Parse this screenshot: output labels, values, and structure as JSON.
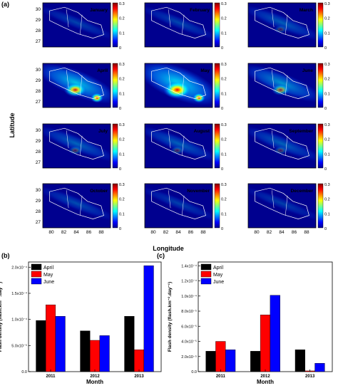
{
  "figure": {
    "map_panel_letter": "(a)",
    "map_xlabel": "Longitude",
    "map_ylabel": "Latitude",
    "map_xticks": [
      "80",
      "82",
      "84",
      "86",
      "88"
    ],
    "map_yticks": [
      "30",
      "29",
      "28",
      "27"
    ],
    "colorbar_ticks": [
      "0.3",
      "0.2",
      "0.1",
      "0"
    ],
    "colorbar_colors": [
      "#00008f",
      "#0000ff",
      "#0080ff",
      "#00ffff",
      "#80ff80",
      "#ffff00",
      "#ff8000",
      "#ff0000",
      "#800000"
    ],
    "map_background": "#00008f",
    "maps": [
      {
        "month": "January",
        "intensity": 0.05
      },
      {
        "month": "February",
        "intensity": 0.07
      },
      {
        "month": "March",
        "intensity": 0.18
      },
      {
        "month": "April",
        "intensity": 0.7
      },
      {
        "month": "May",
        "intensity": 1.0
      },
      {
        "month": "June",
        "intensity": 0.45
      },
      {
        "month": "July",
        "intensity": 0.22
      },
      {
        "month": "August",
        "intensity": 0.2
      },
      {
        "month": "September",
        "intensity": 0.2
      },
      {
        "month": "October",
        "intensity": 0.1
      },
      {
        "month": "November",
        "intensity": 0.04
      },
      {
        "month": "December",
        "intensity": 0.03
      }
    ]
  },
  "chart_data": [
    {
      "panel": "(b)",
      "type": "bar",
      "categories": [
        "2011",
        "2012",
        "2013"
      ],
      "series": [
        {
          "name": "April",
          "color": "#000000",
          "values": [
            9.8e-05,
            7.8e-05,
            0.000106
          ]
        },
        {
          "name": "May",
          "color": "#ff0000",
          "values": [
            0.000128,
            6e-05,
            4.2e-05
          ]
        },
        {
          "name": "June",
          "color": "#0000ff",
          "values": [
            0.000106,
            6.9e-05,
            0.000203
          ]
        }
      ],
      "yticks": [
        {
          "value": 0,
          "label": "0.0"
        },
        {
          "value": 5e-05,
          "label": "5.0x10⁻⁵"
        },
        {
          "value": 0.0001,
          "label": "1.0x10⁻⁴"
        },
        {
          "value": 0.00015,
          "label": "1.5x10⁻⁴"
        },
        {
          "value": 0.0002,
          "label": "2.0x10⁻⁴"
        }
      ],
      "ylim": [
        0,
        0.00021
      ],
      "xlabel": "Month",
      "ylabel": "Flash density (flash.km⁻².day⁻¹)",
      "legend_position": "top-left"
    },
    {
      "panel": "(c)",
      "type": "bar",
      "categories": [
        "2011",
        "2012",
        "2013"
      ],
      "series": [
        {
          "name": "April",
          "color": "#000000",
          "values": [
            2.7e-05,
            2.7e-05,
            2.9e-05
          ]
        },
        {
          "name": "May",
          "color": "#ff0000",
          "values": [
            4e-05,
            7.5e-05,
            1e-06
          ]
        },
        {
          "name": "June",
          "color": "#0000ff",
          "values": [
            2.9e-05,
            0.000101,
            1.1e-05
          ]
        }
      ],
      "yticks": [
        {
          "value": 0,
          "label": "0.0"
        },
        {
          "value": 2e-05,
          "label": "2.0x10⁻⁵"
        },
        {
          "value": 4e-05,
          "label": "4.0x10⁻⁵"
        },
        {
          "value": 6e-05,
          "label": "6.0x10⁻⁵"
        },
        {
          "value": 8e-05,
          "label": "8.0x10⁻⁵"
        },
        {
          "value": 0.0001,
          "label": "1.0x10⁻⁴"
        },
        {
          "value": 0.00012,
          "label": "1.2x10⁻⁴"
        },
        {
          "value": 0.00014,
          "label": "1.4x10⁻⁴"
        }
      ],
      "ylim": [
        0,
        0.000145
      ],
      "xlabel": "Month",
      "ylabel": "Flash density (flash.km⁻².day⁻¹)",
      "legend_position": "top-left"
    }
  ]
}
